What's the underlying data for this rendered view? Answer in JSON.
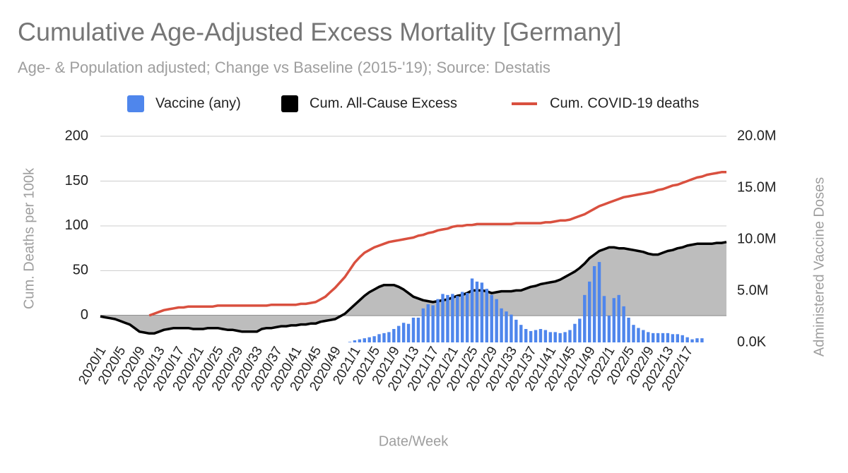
{
  "chart_data": {
    "type": "combo",
    "title": "Cumulative Age-Adjusted Excess Mortality [Germany]",
    "subtitle": "Age- & Population adjusted; Change vs Baseline (2015-'19); Source: Destatis",
    "x_label": "Date/Week",
    "y_label": "Cum. Deaths per 100k",
    "y2_label": "Administered Vaccine Doses",
    "categories": [
      "2020/1",
      null,
      null,
      null,
      "2020/5",
      null,
      null,
      null,
      "2020/9",
      null,
      null,
      null,
      "2020/13",
      null,
      null,
      null,
      "2020/17",
      null,
      null,
      null,
      "2020/21",
      null,
      null,
      null,
      "2020/25",
      null,
      null,
      null,
      "2020/29",
      null,
      null,
      null,
      "2020/33",
      null,
      null,
      null,
      "2020/37",
      null,
      null,
      null,
      "2020/41",
      null,
      null,
      null,
      "2020/45",
      null,
      null,
      null,
      "2020/49",
      null,
      null,
      null,
      "2021/1",
      null,
      null,
      null,
      "2021/5",
      null,
      null,
      null,
      "2021/9",
      null,
      null,
      null,
      "2021/13",
      null,
      null,
      null,
      "2021/17",
      null,
      null,
      null,
      "2021/21",
      null,
      null,
      null,
      "2021/25",
      null,
      null,
      null,
      "2021/29",
      null,
      null,
      null,
      "2021/33",
      null,
      null,
      null,
      "2021/37",
      null,
      null,
      null,
      "2021/41",
      null,
      null,
      null,
      "2021/45",
      null,
      null,
      null,
      "2021/49",
      null,
      null,
      null,
      "2022/1",
      null,
      null,
      null,
      "2022/5",
      null,
      null,
      null,
      "2022/9",
      null,
      null,
      null,
      "2022/13",
      null,
      null,
      null,
      "2022/17",
      null,
      null,
      null,
      null,
      null,
      null,
      null,
      null
    ],
    "series": [
      {
        "name": "Vaccine (any)",
        "type": "bar",
        "axis": "y2",
        "color": "#4f86ec",
        "values": [
          null,
          null,
          null,
          null,
          null,
          null,
          null,
          null,
          null,
          null,
          null,
          null,
          null,
          null,
          null,
          null,
          null,
          null,
          null,
          null,
          null,
          null,
          null,
          null,
          null,
          null,
          null,
          null,
          null,
          null,
          null,
          null,
          null,
          null,
          null,
          null,
          null,
          null,
          null,
          null,
          null,
          null,
          null,
          null,
          null,
          null,
          null,
          null,
          null,
          null,
          null,
          50000,
          200000,
          300000,
          400000,
          500000,
          600000,
          800000,
          900000,
          1000000,
          1300000,
          1600000,
          1900000,
          1800000,
          2400000,
          2400000,
          3300000,
          3700000,
          3600000,
          4200000,
          4700000,
          4600000,
          4700000,
          4500000,
          4900000,
          4800000,
          6200000,
          5900000,
          5800000,
          5200000,
          4600000,
          4200000,
          3300000,
          3000000,
          2700000,
          2200000,
          1700000,
          1300000,
          1100000,
          1200000,
          1300000,
          1200000,
          1000000,
          1000000,
          900000,
          1000000,
          1200000,
          1800000,
          2300000,
          4600000,
          5900000,
          7400000,
          7800000,
          4500000,
          2600000,
          4300000,
          4600000,
          3500000,
          2400000,
          1700000,
          1400000,
          1200000,
          1000000,
          900000,
          900000,
          900000,
          900000,
          800000,
          800000,
          700000,
          500000,
          300000,
          400000,
          400000,
          null,
          null,
          null,
          null,
          null
        ]
      },
      {
        "name": "Cum. All-Cause Excess",
        "type": "area",
        "color": "#000000",
        "fill": "#bdbdbd",
        "values": [
          -1,
          -2,
          -3,
          -4,
          -6,
          -8,
          -10,
          -14,
          -18,
          -19,
          -20,
          -20,
          -18,
          -16,
          -15,
          -14,
          -14,
          -14,
          -14,
          -15,
          -15,
          -15,
          -14,
          -14,
          -14,
          -15,
          -16,
          -16,
          -17,
          -18,
          -18,
          -18,
          -18,
          -15,
          -14,
          -14,
          -13,
          -12,
          -12,
          -11,
          -11,
          -10,
          -10,
          -9,
          -9,
          -7,
          -6,
          -5,
          -4,
          -1,
          2,
          7,
          12,
          17,
          22,
          26,
          29,
          32,
          34,
          34,
          34,
          32,
          29,
          25,
          21,
          19,
          17,
          16,
          15,
          16,
          17,
          18,
          20,
          22,
          23,
          25,
          28,
          28,
          28,
          27,
          25,
          26,
          27,
          27,
          27,
          28,
          28,
          30,
          32,
          33,
          35,
          36,
          37,
          38,
          40,
          43,
          46,
          49,
          53,
          58,
          64,
          68,
          72,
          74,
          76,
          76,
          75,
          75,
          74,
          73,
          72,
          71,
          69,
          68,
          68,
          70,
          72,
          73,
          75,
          76,
          78,
          79,
          80,
          80,
          80,
          80,
          81,
          81,
          82
        ]
      },
      {
        "name": "Cum. COVID-19 deaths",
        "type": "line",
        "color": "#d9503f",
        "values": [
          null,
          null,
          null,
          null,
          null,
          null,
          null,
          null,
          null,
          null,
          0,
          2,
          4,
          6,
          7,
          8,
          9,
          9,
          10,
          10,
          10,
          10,
          10,
          10,
          11,
          11,
          11,
          11,
          11,
          11,
          11,
          11,
          11,
          11,
          11,
          12,
          12,
          12,
          12,
          12,
          12,
          13,
          13,
          14,
          15,
          18,
          21,
          26,
          31,
          37,
          43,
          51,
          59,
          65,
          70,
          73,
          76,
          78,
          80,
          82,
          83,
          84,
          85,
          86,
          87,
          89,
          90,
          92,
          93,
          95,
          96,
          97,
          99,
          100,
          100,
          101,
          101,
          102,
          102,
          102,
          102,
          102,
          102,
          102,
          102,
          103,
          103,
          103,
          103,
          103,
          103,
          104,
          104,
          105,
          106,
          106,
          107,
          109,
          111,
          113,
          116,
          119,
          122,
          124,
          126,
          128,
          130,
          132,
          133,
          134,
          135,
          136,
          137,
          138,
          140,
          141,
          143,
          145,
          146,
          148,
          150,
          152,
          154,
          155,
          157,
          158,
          159,
          160,
          160
        ]
      }
    ],
    "ylim": [
      -30,
      200
    ],
    "yticks": [
      0,
      50,
      100,
      150,
      200
    ],
    "y2lim": [
      0,
      20000000
    ],
    "y2ticks": [
      {
        "value": 0,
        "label": "0.0K"
      },
      {
        "value": 5000000,
        "label": "5.0M"
      },
      {
        "value": 10000000,
        "label": "10.0M"
      },
      {
        "value": 15000000,
        "label": "15.0M"
      },
      {
        "value": 20000000,
        "label": "20.0M"
      }
    ],
    "grid": true,
    "legend": "top"
  }
}
